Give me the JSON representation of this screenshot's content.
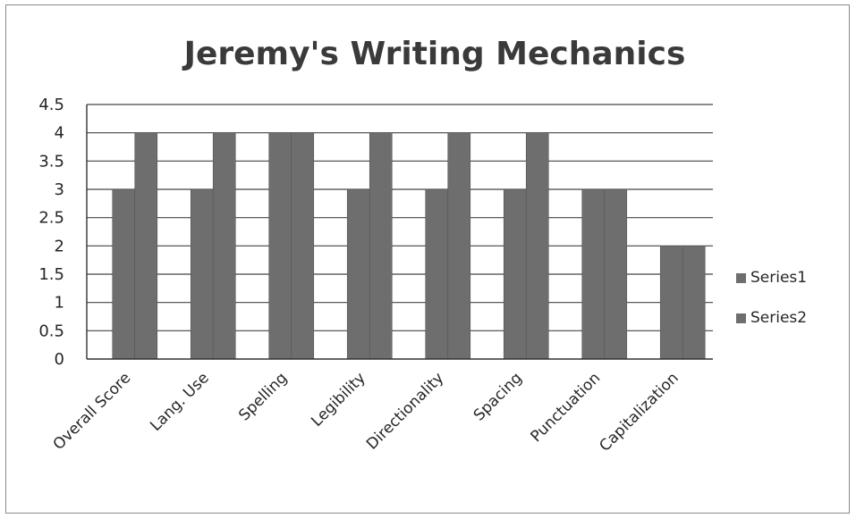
{
  "chart_data": {
    "type": "bar",
    "title": "Jeremy's Writing Mechanics",
    "categories": [
      "Overall Score",
      "Lang. Use",
      "Spelling",
      "Legibility",
      "Directionality",
      "Spacing",
      "Punctuation",
      "Capitalization"
    ],
    "series": [
      {
        "name": "Series1",
        "values": [
          3,
          3,
          4,
          3,
          3,
          3,
          3,
          2
        ],
        "color": "#6e6e6e"
      },
      {
        "name": "Series2",
        "values": [
          4,
          4,
          4,
          4,
          4,
          4,
          3,
          2
        ],
        "color": "#6e6e6e"
      }
    ],
    "yticks": [
      "0",
      "0.5",
      "1",
      "1.5",
      "2",
      "2.5",
      "3",
      "3.5",
      "4",
      "4.5"
    ],
    "ylim": [
      0,
      4.5
    ],
    "grid": true,
    "legend_position": "right"
  }
}
